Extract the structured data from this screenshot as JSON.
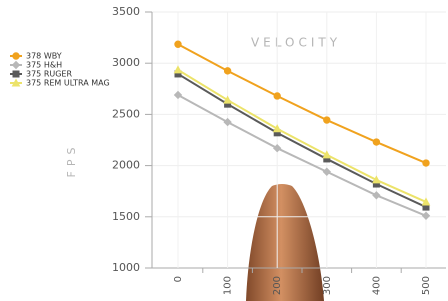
{
  "chart_data": {
    "type": "line",
    "title": "VELOCITY",
    "y_label": "FPS",
    "categories": [
      "0",
      "100",
      "200",
      "300",
      "400",
      "500"
    ],
    "series": [
      {
        "name": "378 WBY",
        "color": "#f0a21e",
        "marker": "circle",
        "values": [
          3185,
          2925,
          2680,
          2445,
          2230,
          2025
        ]
      },
      {
        "name": "375 H&H",
        "color": "#b8b8b8",
        "marker": "diamond",
        "values": [
          2690,
          2425,
          2170,
          1940,
          1710,
          1510
        ]
      },
      {
        "name": "375 RUGER",
        "color": "#5a5a5a",
        "marker": "square",
        "values": [
          2895,
          2600,
          2320,
          2065,
          1820,
          1595
        ]
      },
      {
        "name": "375 REM ULTRA MAG",
        "color": "#ece36a",
        "marker": "triangle",
        "values": [
          2935,
          2640,
          2360,
          2105,
          1860,
          1645
        ]
      }
    ],
    "ylim": [
      1000,
      3500
    ],
    "yticks": [
      1000,
      1500,
      2000,
      2500,
      3000,
      3500
    ],
    "grid": true
  }
}
